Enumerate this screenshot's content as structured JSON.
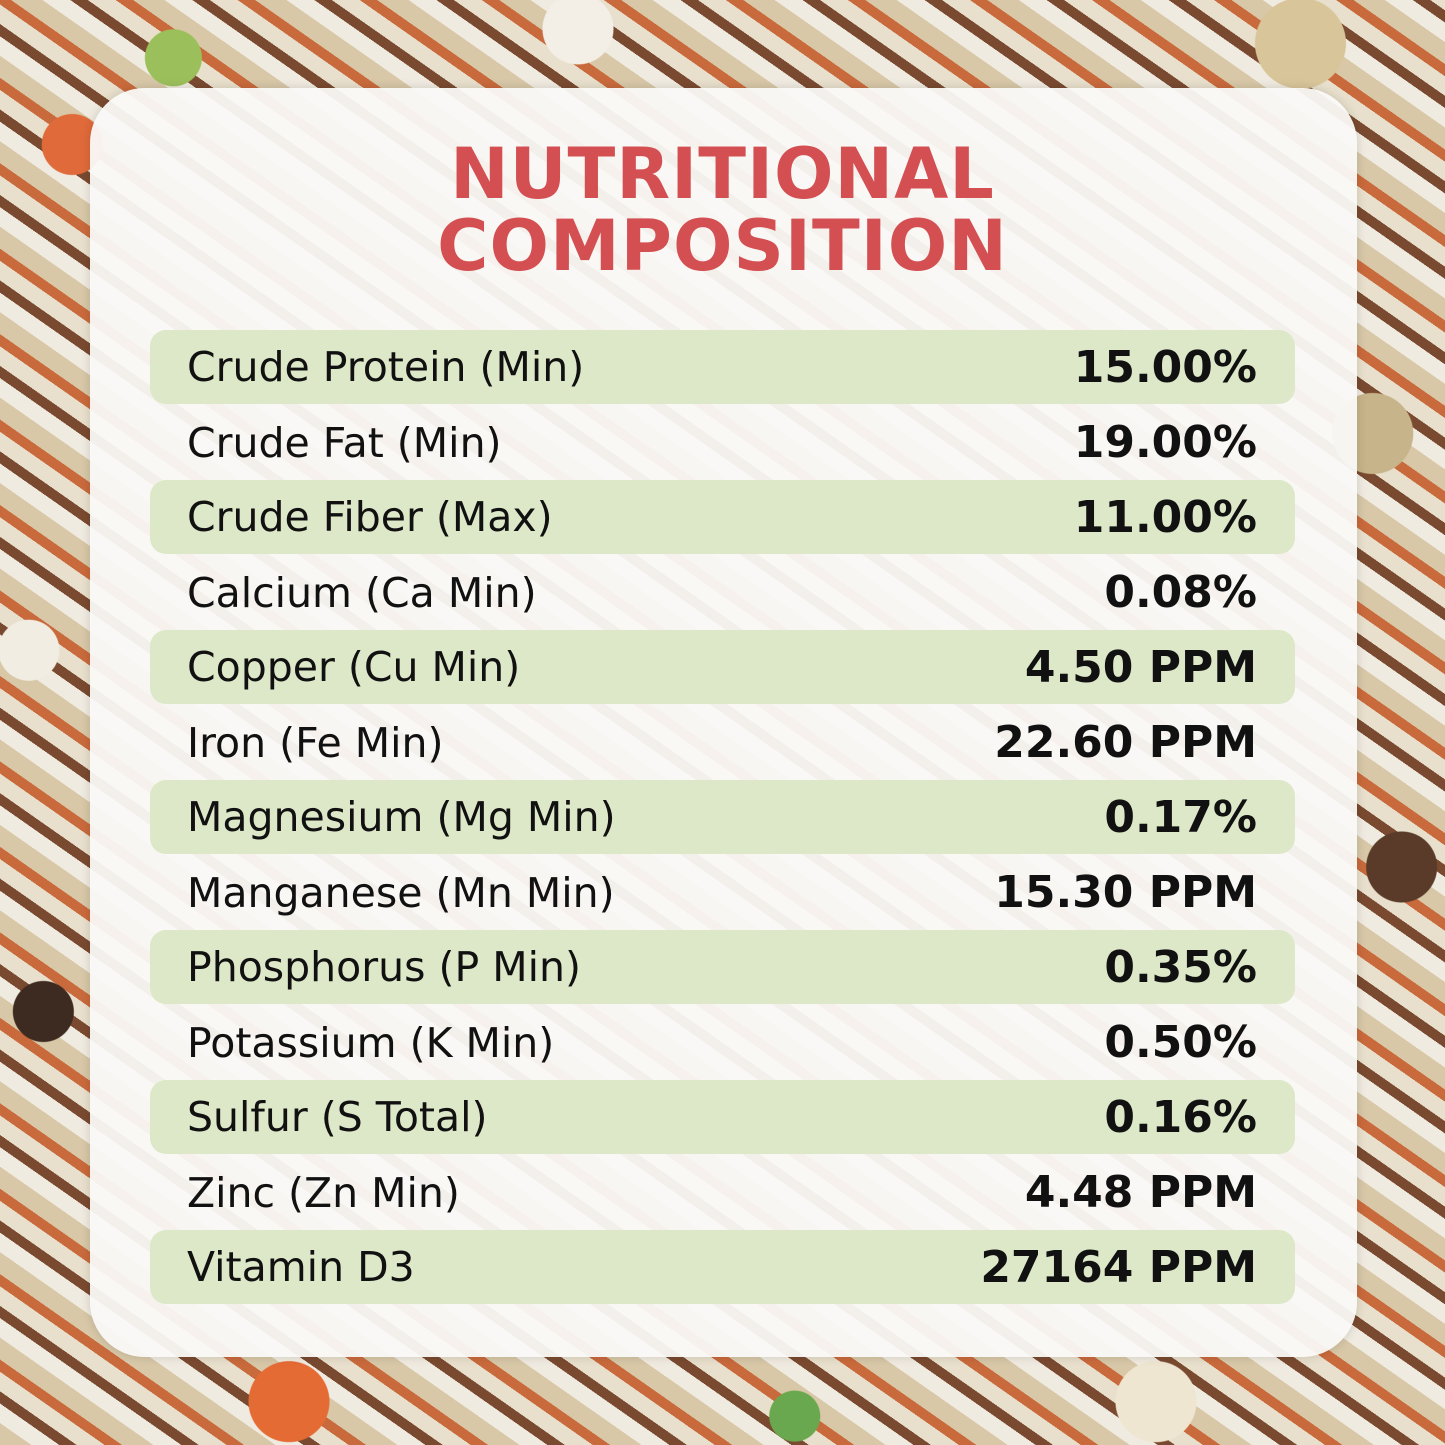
{
  "title": {
    "line1": "NUTRITIONAL",
    "line2": "COMPOSITION"
  },
  "colors": {
    "title": "#d44f52",
    "row_shade": "#dde8c8"
  },
  "rows": [
    {
      "label": "Crude Protein (Min)",
      "value": "15.00%"
    },
    {
      "label": "Crude Fat (Min)",
      "value": "19.00%"
    },
    {
      "label": "Crude Fiber (Max)",
      "value": "11.00%"
    },
    {
      "label": "Calcium (Ca Min)",
      "value": "0.08%"
    },
    {
      "label": "Copper (Cu Min)",
      "value": "4.50 PPM"
    },
    {
      "label": "Iron (Fe Min)",
      "value": "22.60 PPM"
    },
    {
      "label": "Magnesium (Mg Min)",
      "value": "0.17%"
    },
    {
      "label": "Manganese (Mn Min)",
      "value": "15.30 PPM"
    },
    {
      "label": "Phosphorus (P Min)",
      "value": "0.35%"
    },
    {
      "label": "Potassium (K Min)",
      "value": "0.50%"
    },
    {
      "label": "Sulfur (S Total)",
      "value": "0.16%"
    },
    {
      "label": "Zinc (Zn Min)",
      "value": "4.48 PPM"
    },
    {
      "label": "Vitamin D3",
      "value": "27164 PPM"
    }
  ]
}
